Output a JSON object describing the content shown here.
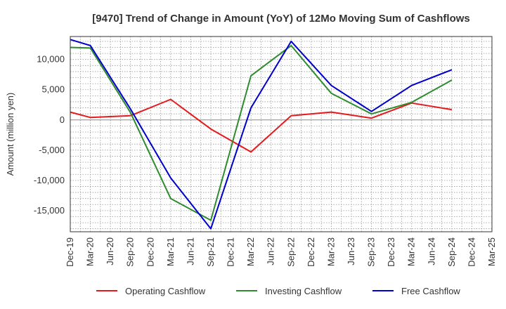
{
  "chart_data": {
    "type": "line",
    "title": "[9470]  Trend of Change in Amount (YoY) of 12Mo Moving Sum of Cashflows",
    "xlabel": "",
    "ylabel": "Amount (million yen)",
    "ylim": [
      -18500,
      13800
    ],
    "yticks": [
      10000,
      5000,
      0,
      -5000,
      -10000,
      -15000
    ],
    "ytick_labels": [
      "10,000",
      "5,000",
      "0",
      "-5,000",
      "-10,000",
      "-15,000"
    ],
    "categories": [
      "Dec-19",
      "Mar-20",
      "Jun-20",
      "Sep-20",
      "Dec-20",
      "Mar-21",
      "Jun-21",
      "Sep-21",
      "Dec-21",
      "Mar-22",
      "Jun-22",
      "Sep-22",
      "Dec-22",
      "Mar-23",
      "Jun-23",
      "Sep-23",
      "Dec-23",
      "Mar-24",
      "Jun-24",
      "Sep-24",
      "Dec-24",
      "Mar-25"
    ],
    "series": [
      {
        "name": "Operating Cashflow",
        "color": "#e41a1c",
        "values": [
          1300,
          400,
          null,
          700,
          null,
          3400,
          null,
          -1500,
          null,
          -5300,
          null,
          700,
          null,
          1300,
          null,
          300,
          null,
          2800,
          null,
          1700,
          null,
          null
        ]
      },
      {
        "name": "Investing Cashflow",
        "color": "#2e8b2e",
        "values": [
          12000,
          11900,
          null,
          1200,
          null,
          -13000,
          null,
          -16600,
          null,
          7300,
          null,
          12300,
          null,
          4400,
          null,
          1000,
          null,
          2900,
          null,
          6600,
          null,
          null
        ]
      },
      {
        "name": "Free Cashflow",
        "color": "#0000cc",
        "values": [
          13300,
          12300,
          null,
          1800,
          null,
          -9600,
          null,
          -18000,
          null,
          2000,
          null,
          13000,
          null,
          5700,
          null,
          1400,
          null,
          5700,
          null,
          8300,
          null,
          null
        ]
      }
    ],
    "legend_position": "bottom",
    "grid": true
  }
}
